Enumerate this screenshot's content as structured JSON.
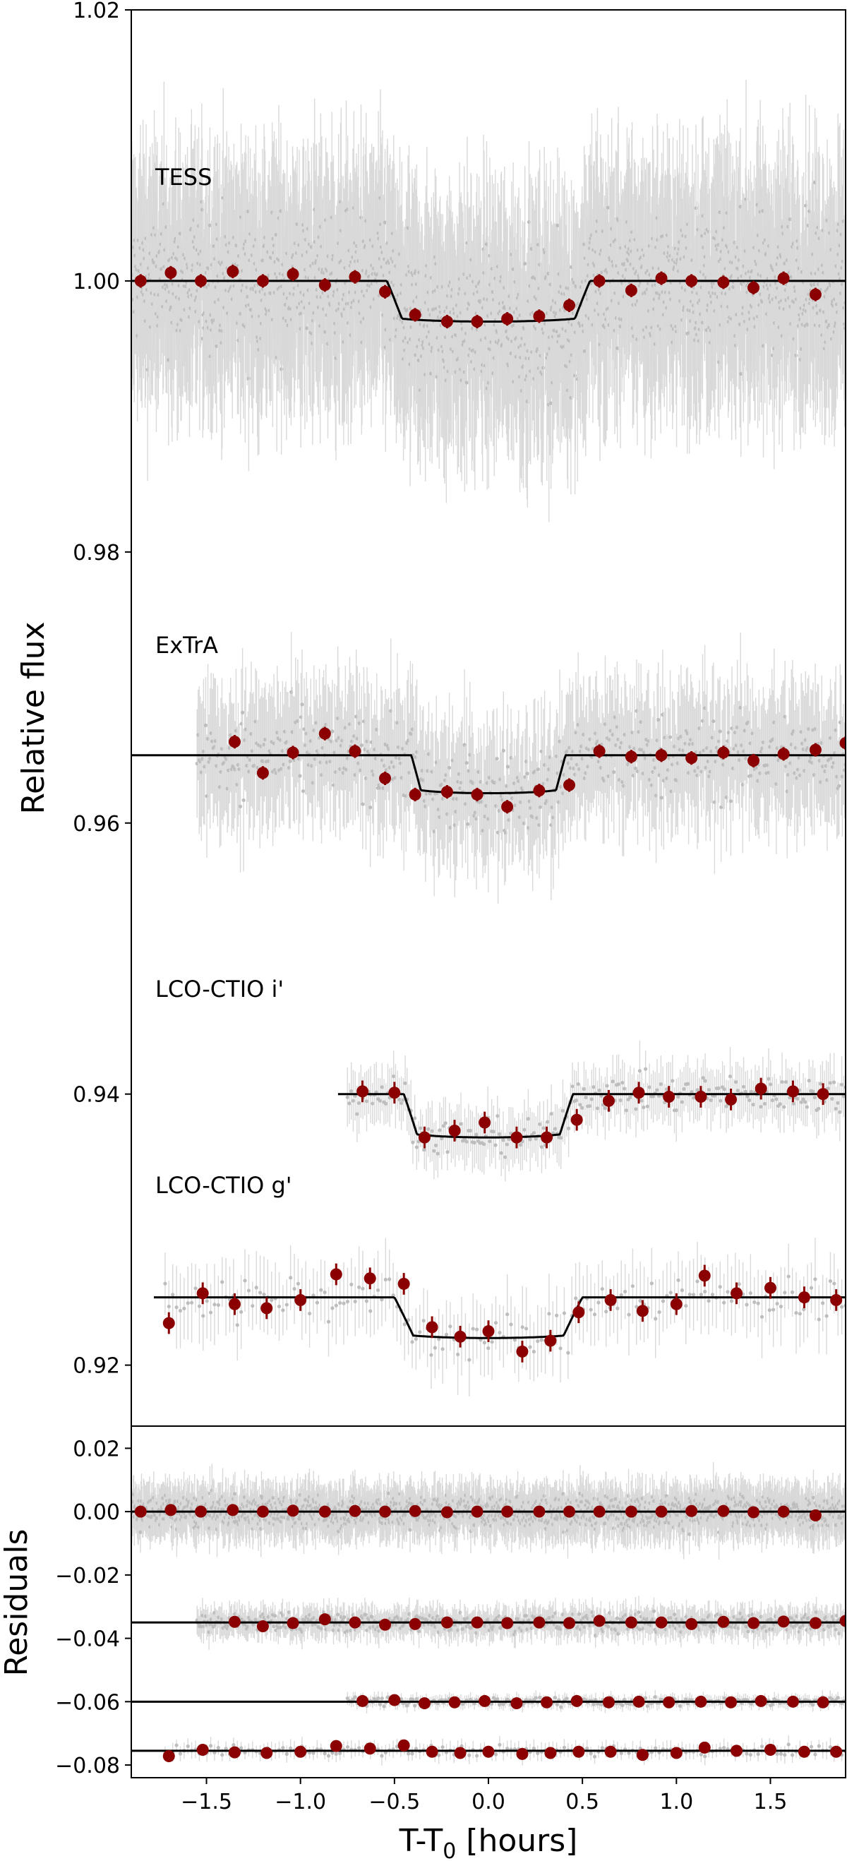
{
  "chart_data": [
    {
      "type": "scatter",
      "panel": "flux",
      "xlabel": "",
      "ylabel": "Relative flux",
      "xlim": [
        -1.9,
        1.9
      ],
      "ylim": [
        0.9155,
        1.02
      ],
      "yticks": [
        "0.92",
        "0.94",
        "0.96",
        "0.98",
        "1.00",
        "1.02"
      ],
      "colors": {
        "raw": "#bdbdbd",
        "binned": "#8b0000",
        "model": "#000000"
      },
      "series": [
        {
          "name": "TESS",
          "baseline": 1.0,
          "depth": 0.003,
          "t14": 1.08,
          "ingress": 0.08,
          "raw_range": [
            -1.9,
            1.9
          ],
          "raw_count": 1400,
          "raw_scatter": 0.0065,
          "binned_x": [
            -1.85,
            -1.69,
            -1.53,
            -1.36,
            -1.2,
            -1.04,
            -0.87,
            -0.71,
            -0.55,
            -0.39,
            -0.22,
            -0.06,
            0.1,
            0.27,
            0.43,
            0.59,
            0.76,
            0.92,
            1.08,
            1.25,
            1.41,
            1.57,
            1.74
          ],
          "binned_y": [
            1.0,
            1.0006,
            1.0,
            1.0007,
            1.0,
            1.0005,
            0.9997,
            1.0003,
            0.9992,
            0.9975,
            0.997,
            0.997,
            0.9972,
            0.9974,
            0.9982,
            1.0,
            0.9993,
            1.0002,
            1.0,
            0.9999,
            0.9995,
            1.0002,
            0.999
          ]
        },
        {
          "name": "ExTrA",
          "baseline": 0.965,
          "depth": 0.0028,
          "t14": 0.82,
          "ingress": 0.05,
          "raw_range": [
            -1.55,
            1.9
          ],
          "raw_count": 600,
          "raw_scatter": 0.004,
          "binned_x": [
            -1.35,
            -1.2,
            -1.04,
            -0.87,
            -0.71,
            -0.55,
            -0.39,
            -0.22,
            -0.06,
            0.1,
            0.27,
            0.43,
            0.59,
            0.76,
            0.92,
            1.08,
            1.25,
            1.41,
            1.57,
            1.74,
            1.9
          ],
          "binned_y": [
            0.966,
            0.9637,
            0.9652,
            0.9666,
            0.9653,
            0.9633,
            0.9621,
            0.9623,
            0.9621,
            0.9612,
            0.9624,
            0.9628,
            0.9653,
            0.9649,
            0.965,
            0.9648,
            0.9652,
            0.9646,
            0.9651,
            0.9654,
            0.9659
          ]
        },
        {
          "name": "LCO-CTIO i'",
          "baseline": 0.94,
          "depth": 0.0032,
          "t14": 0.9,
          "ingress": 0.07,
          "raw_range": [
            -0.75,
            1.9
          ],
          "raw_count": 260,
          "raw_scatter": 0.0017,
          "binned_x": [
            -0.67,
            -0.5,
            -0.34,
            -0.18,
            -0.02,
            0.15,
            0.31,
            0.47,
            0.64,
            0.8,
            0.96,
            1.13,
            1.29,
            1.45,
            1.62,
            1.78
          ],
          "binned_y": [
            0.9402,
            0.9401,
            0.9368,
            0.9373,
            0.9379,
            0.9368,
            0.9368,
            0.9381,
            0.9395,
            0.9401,
            0.9398,
            0.9398,
            0.9396,
            0.9404,
            0.9402,
            0.94
          ]
        },
        {
          "name": "LCO-CTIO g'",
          "baseline": 0.925,
          "depth": 0.003,
          "t14": 1.0,
          "ingress": 0.1,
          "raw_range": [
            -1.72,
            1.9
          ],
          "raw_count": 180,
          "raw_scatter": 0.0022,
          "binned_x": [
            -1.7,
            -1.52,
            -1.35,
            -1.18,
            -1.0,
            -0.81,
            -0.63,
            -0.45,
            -0.3,
            -0.15,
            0.0,
            0.18,
            0.33,
            0.48,
            0.65,
            0.82,
            1.0,
            1.15,
            1.32,
            1.5,
            1.68,
            1.85
          ],
          "binned_y": [
            0.9231,
            0.9253,
            0.9245,
            0.9242,
            0.9248,
            0.9267,
            0.9264,
            0.926,
            0.9228,
            0.9221,
            0.9225,
            0.921,
            0.9218,
            0.9239,
            0.9248,
            0.924,
            0.9245,
            0.9266,
            0.9253,
            0.9257,
            0.925,
            0.9248
          ]
        }
      ]
    },
    {
      "type": "scatter",
      "panel": "residuals",
      "xlabel_main": "T-T",
      "xlabel_sub": "0",
      "xlabel_tail": " [hours]",
      "ylabel": "Residuals",
      "xlim": [
        -1.9,
        1.9
      ],
      "ylim": [
        -0.084,
        0.027
      ],
      "xticks": [
        "−1.5",
        "−1.0",
        "−0.5",
        "0.0",
        "0.5",
        "1.0",
        "1.5"
      ],
      "xtick_values": [
        -1.5,
        -1.0,
        -0.5,
        0.0,
        0.5,
        1.0,
        1.5
      ],
      "yticks": [
        "0.02",
        "0.00",
        "−0.02",
        "−0.04",
        "−0.06",
        "−0.08"
      ],
      "ytick_values": [
        0.02,
        0.0,
        -0.02,
        -0.04,
        -0.06,
        -0.08
      ],
      "series": [
        {
          "offset": 0.0,
          "raw_range": [
            -1.9,
            1.9
          ],
          "raw_count": 1400,
          "raw_scatter": 0.0065,
          "binned_x": [
            -1.85,
            -1.69,
            -1.53,
            -1.36,
            -1.2,
            -1.04,
            -0.87,
            -0.71,
            -0.55,
            -0.39,
            -0.22,
            -0.06,
            0.1,
            0.27,
            0.43,
            0.59,
            0.76,
            0.92,
            1.08,
            1.25,
            1.41,
            1.57,
            1.74
          ],
          "binned_y": [
            0.0,
            0.0005,
            0.0,
            0.0005,
            0.0,
            0.0003,
            0.0,
            0.0002,
            0.0,
            0.0002,
            -0.0002,
            0.0,
            0.0,
            0.0,
            0.0,
            0.0,
            0.0,
            0.0,
            0.0002,
            0.0002,
            -0.0002,
            0.0,
            -0.0012
          ]
        },
        {
          "offset": -0.035,
          "raw_range": [
            -1.55,
            1.9
          ],
          "raw_count": 600,
          "raw_scatter": 0.004,
          "binned_x": [
            -1.35,
            -1.2,
            -1.04,
            -0.87,
            -0.71,
            -0.55,
            -0.39,
            -0.22,
            -0.06,
            0.1,
            0.27,
            0.43,
            0.59,
            0.76,
            0.92,
            1.08,
            1.25,
            1.41,
            1.57,
            1.74,
            1.9
          ],
          "binned_y": [
            -0.0348,
            -0.0362,
            -0.0352,
            -0.034,
            -0.035,
            -0.0357,
            -0.0355,
            -0.035,
            -0.035,
            -0.0352,
            -0.035,
            -0.0352,
            -0.0345,
            -0.035,
            -0.035,
            -0.0355,
            -0.0348,
            -0.0352,
            -0.0347,
            -0.0352,
            -0.0345
          ]
        },
        {
          "offset": -0.06,
          "raw_range": [
            -0.75,
            1.9
          ],
          "raw_count": 260,
          "raw_scatter": 0.0017,
          "binned_x": [
            -0.67,
            -0.5,
            -0.34,
            -0.18,
            -0.02,
            0.15,
            0.31,
            0.47,
            0.64,
            0.8,
            0.96,
            1.13,
            1.29,
            1.45,
            1.62,
            1.78
          ],
          "binned_y": [
            -0.0598,
            -0.0595,
            -0.0605,
            -0.0602,
            -0.0598,
            -0.0605,
            -0.0602,
            -0.0598,
            -0.0602,
            -0.06,
            -0.0602,
            -0.06,
            -0.0602,
            -0.0598,
            -0.06,
            -0.0602
          ]
        },
        {
          "offset": -0.0755,
          "raw_range": [
            -1.72,
            1.9
          ],
          "raw_count": 180,
          "raw_scatter": 0.0022,
          "binned_x": [
            -1.7,
            -1.52,
            -1.35,
            -1.18,
            -1.0,
            -0.81,
            -0.63,
            -0.45,
            -0.3,
            -0.15,
            0.0,
            0.18,
            0.33,
            0.48,
            0.65,
            0.82,
            1.0,
            1.15,
            1.32,
            1.5,
            1.68,
            1.85
          ],
          "binned_y": [
            -0.0772,
            -0.0752,
            -0.076,
            -0.0762,
            -0.0758,
            -0.074,
            -0.0748,
            -0.0738,
            -0.0758,
            -0.0762,
            -0.0758,
            -0.0765,
            -0.0762,
            -0.0758,
            -0.0758,
            -0.0768,
            -0.0762,
            -0.0745,
            -0.0755,
            -0.0752,
            -0.0758,
            -0.0758
          ]
        }
      ]
    }
  ]
}
